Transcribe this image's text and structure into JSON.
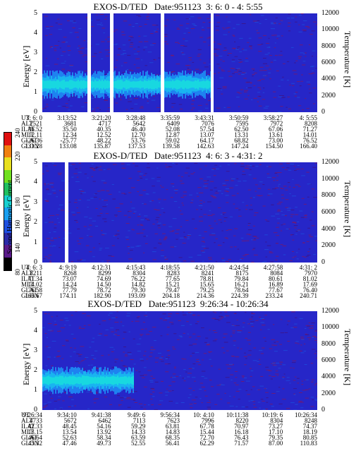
{
  "colorbar": {
    "title": "Second Harmonic Current",
    "ticks": [
      "80",
      "140",
      "160",
      "180",
      "200",
      "220",
      "240"
    ],
    "colors": [
      "#000000",
      "#5a1a8a",
      "#2a2aa8",
      "#1e50e0",
      "#19a0f0",
      "#18d0d0",
      "#20c060",
      "#70e020",
      "#e8e020",
      "#f08010",
      "#e01010"
    ]
  },
  "panels": [
    {
      "title": "EXOS-D/TED   Date:951123  3: 6: 0 - 4: 5:55",
      "gaps": [
        [
          0.165,
          0.177
        ],
        [
          0.246,
          0.258
        ],
        [
          0.432,
          0.443
        ],
        [
          0.613,
          0.624
        ]
      ],
      "table": {
        "labels": [
          "UT",
          "ALT",
          "ILAT",
          "MLT",
          "GLAT",
          "GLON"
        ],
        "columns": [
          [
            "3: 6: 0",
            "2521",
            "36.52",
            "12.11",
            "-26.36",
            "131.28"
          ],
          [
            "3:13:52",
            "3681",
            "35.50",
            "12.34",
            "-25.77",
            "133.08"
          ],
          [
            "3:21:20",
            "4717",
            "40.35",
            "12.52",
            "48.22",
            "135.87"
          ],
          [
            "3:28:48",
            "5642",
            "46.40",
            "12.70",
            "53.76",
            "137.53"
          ],
          [
            "3:35:59",
            "6409",
            "52.08",
            "12.87",
            "59.02",
            "139.58"
          ],
          [
            "3:43:31",
            "7076",
            "57.54",
            "13.07",
            "64.17",
            "142.63"
          ],
          [
            "3:50:59",
            "7595",
            "62.50",
            "13.31",
            "68.82",
            "147.24"
          ],
          [
            "3:58:27",
            "7972",
            "67.06",
            "13.61",
            "73.00",
            "154.50"
          ],
          [
            "4: 5:55",
            "8208",
            "71.27",
            "14.01",
            "76.52",
            "166.40"
          ]
        ]
      }
    },
    {
      "title": "EXOS-D/TED   Date:951123  4: 6: 3 - 4:31: 2",
      "gaps": [
        [
          0.083,
          0.094
        ]
      ],
      "table": {
        "labels": [
          "UT",
          "ALT",
          "ILAT",
          "MLT",
          "GLAT",
          "GLON"
        ],
        "columns": [
          [
            "4: 6: 3",
            "8211",
            "71.34",
            "14.02",
            "76.58",
            "166.67"
          ],
          [
            "4: 9:19",
            "8268",
            "73.07",
            "14.24",
            "77.79",
            "174.11"
          ],
          [
            "4:12:31",
            "8299",
            "74.69",
            "14.50",
            "78.72",
            "182.90"
          ],
          [
            "4:15:43",
            "8304",
            "76.22",
            "14.82",
            "79.30",
            "193.09"
          ],
          [
            "4:18:55",
            "8283",
            "77.65",
            "15.21",
            "79.47",
            "204.18"
          ],
          [
            "4:21:50",
            "8241",
            "78.81",
            "15.65",
            "79.25",
            "214.36"
          ],
          [
            "4:24:54",
            "8175",
            "79.84",
            "16.21",
            "78.64",
            "224.39"
          ],
          [
            "4:27:58",
            "8084",
            "80.61",
            "16.89",
            "77.67",
            "233.24"
          ],
          [
            "4:31: 2",
            "7970",
            "81.02",
            "17.69",
            "76.40",
            "240.71"
          ]
        ]
      }
    },
    {
      "title": "EXOS-D/TED   Date:951123  9:26:34 - 10:26:34",
      "gaps": [],
      "table": {
        "labels": [
          "UT",
          "ALT",
          "ILAT",
          "MLT",
          "GLAT",
          "GLON"
        ],
        "columns": [
          [
            "9:26:34",
            "4733",
            "42.33",
            "13.15",
            "46.64",
            "45.32"
          ],
          [
            "9:34:10",
            "5672",
            "48.45",
            "13.54",
            "52.63",
            "47.46"
          ],
          [
            "9:41:38",
            "6462",
            "54.16",
            "13.92",
            "58.34",
            "49.73"
          ],
          [
            "9:49: 6",
            "7113",
            "59.29",
            "14.33",
            "63.59",
            "52.55"
          ],
          [
            "9:56:34",
            "7623",
            "63.81",
            "14.83",
            "68.35",
            "56.41"
          ],
          [
            "10: 4:10",
            "7996",
            "67.78",
            "15.44",
            "72.70",
            "62.29"
          ],
          [
            "10:11:38",
            "8220",
            "70.97",
            "16.18",
            "76.43",
            "71.57"
          ],
          [
            "10:19: 6",
            "8304",
            "73.27",
            "17.10",
            "79.35",
            "87.00"
          ],
          [
            "10:26:34",
            "8248",
            "74.37",
            "18.19",
            "80.85",
            "110.83"
          ]
        ]
      }
    }
  ],
  "chart_data": [
    {
      "type": "heatmap",
      "title": "EXOS-D/TED   Date:951123  3: 6: 0 - 4: 5:55",
      "xlabel": "UT",
      "ylabel": "Energy [eV]",
      "y2label": "Temperature [K]",
      "ylim": [
        0,
        5
      ],
      "y2lim": [
        0,
        12000
      ],
      "yticks": [
        "0",
        "1",
        "2",
        "3",
        "4",
        "5"
      ],
      "y2ticks": [
        "0",
        "2000",
        "4000",
        "6000",
        "8000",
        "10000",
        "12000"
      ],
      "x_ticks": [
        "3: 6: 0",
        "3:13:52",
        "3:21:20",
        "3:28:48",
        "3:35:59",
        "3:43:31",
        "3:50:59",
        "3:58:27",
        "4: 5:55"
      ],
      "colorbar_label": "Second Harmonic Current",
      "colorbar_range": [
        80,
        240
      ],
      "band": {
        "x_end": 0.62,
        "y_center": 1.4,
        "y_halfwidth": 0.6
      }
    },
    {
      "type": "heatmap",
      "title": "EXOS-D/TED   Date:951123  4: 6: 3 - 4:31: 2",
      "xlabel": "UT",
      "ylabel": "Energy [eV]",
      "y2label": "Temperature [K]",
      "ylim": [
        0,
        5
      ],
      "y2lim": [
        0,
        12000
      ],
      "yticks": [
        "0",
        "1",
        "2",
        "3",
        "4",
        "5"
      ],
      "y2ticks": [
        "0",
        "2000",
        "4000",
        "6000",
        "8000",
        "10000",
        "12000"
      ],
      "x_ticks": [
        "4: 6: 3",
        "4: 9:19",
        "4:12:31",
        "4:15:43",
        "4:18:55",
        "4:21:50",
        "4:24:54",
        "4:27:58",
        "4:31: 2"
      ],
      "colorbar_label": "Second Harmonic Current",
      "colorbar_range": [
        80,
        240
      ]
    },
    {
      "type": "heatmap",
      "title": "EXOS-D/TED   Date:951123  9:26:34 - 10:26:34",
      "xlabel": "UT",
      "ylabel": "Energy [eV]",
      "y2label": "Temperature [K]",
      "ylim": [
        0,
        5
      ],
      "y2lim": [
        0,
        12000
      ],
      "yticks": [
        "0",
        "1",
        "2",
        "3",
        "4",
        "5"
      ],
      "y2ticks": [
        "0",
        "2000",
        "4000",
        "6000",
        "8000",
        "10000",
        "12000"
      ],
      "x_ticks": [
        "9:26:34",
        "9:34:10",
        "9:41:38",
        "9:49: 6",
        "9:56:34",
        "10: 4:10",
        "10:11:38",
        "10:19: 6",
        "10:26:34"
      ],
      "colorbar_label": "Second Harmonic Current",
      "colorbar_range": [
        80,
        240
      ],
      "band": {
        "x_end": 0.33,
        "y_center": 1.5,
        "y_halfwidth": 0.6
      }
    }
  ]
}
